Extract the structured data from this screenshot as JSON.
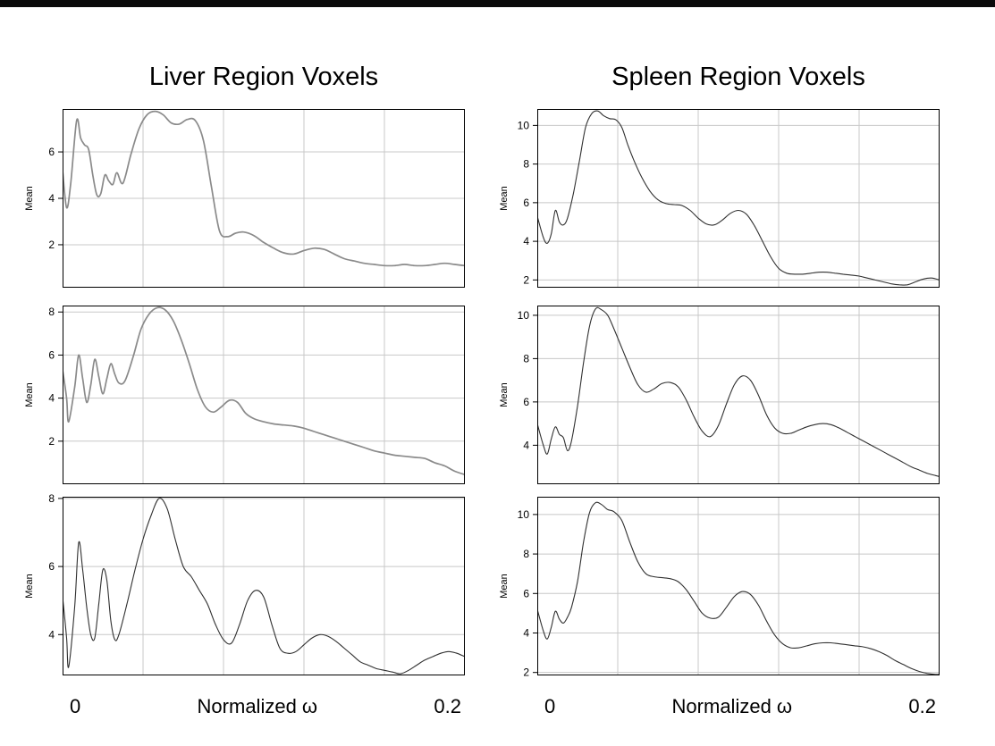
{
  "window": {
    "top_bar_color": "#0a0a0a"
  },
  "figure": {
    "background": "#ffffff",
    "grid_color": "#c8c8c8",
    "border_color": "#000000"
  },
  "chart_data": [
    {
      "type": "line",
      "title": "Liver Region Voxels",
      "region": "Liver",
      "subplot": 1,
      "ylabel": "Mean",
      "xlim": [
        0,
        0.2
      ],
      "ylim": [
        0.15,
        7.85
      ],
      "yticks": [
        2,
        4,
        6
      ],
      "grid_x": [
        0.04,
        0.08,
        0.12,
        0.16
      ],
      "line_color": "#8a8a8a",
      "line_width": 1.7,
      "x": [
        0,
        0.002,
        0.004,
        0.007,
        0.009,
        0.011,
        0.013,
        0.015,
        0.017,
        0.019,
        0.021,
        0.023,
        0.025,
        0.027,
        0.03,
        0.034,
        0.038,
        0.042,
        0.046,
        0.05,
        0.054,
        0.058,
        0.062,
        0.066,
        0.07,
        0.074,
        0.078,
        0.082,
        0.086,
        0.09,
        0.095,
        0.1,
        0.105,
        0.11,
        0.115,
        0.12,
        0.125,
        0.13,
        0.135,
        0.14,
        0.145,
        0.15,
        0.155,
        0.16,
        0.165,
        0.17,
        0.175,
        0.18,
        0.185,
        0.19,
        0.195,
        0.2
      ],
      "y": [
        5.2,
        3.6,
        4.6,
        7.35,
        6.6,
        6.3,
        6.1,
        5.0,
        4.15,
        4.2,
        5.0,
        4.75,
        4.6,
        5.1,
        4.65,
        5.9,
        7.0,
        7.6,
        7.75,
        7.6,
        7.25,
        7.2,
        7.4,
        7.35,
        6.5,
        4.5,
        2.6,
        2.35,
        2.5,
        2.55,
        2.4,
        2.1,
        1.85,
        1.65,
        1.6,
        1.75,
        1.85,
        1.8,
        1.6,
        1.4,
        1.3,
        1.2,
        1.15,
        1.1,
        1.1,
        1.15,
        1.1,
        1.1,
        1.15,
        1.2,
        1.15,
        1.1
      ]
    },
    {
      "type": "line",
      "region": "Liver",
      "subplot": 2,
      "ylabel": "Mean",
      "xlim": [
        0,
        0.2
      ],
      "ylim": [
        0,
        8.3
      ],
      "yticks": [
        2,
        4,
        6,
        8
      ],
      "grid_x": [
        0.04,
        0.08,
        0.12,
        0.16
      ],
      "line_color": "#8a8a8a",
      "line_width": 1.7,
      "x": [
        0,
        0.002,
        0.003,
        0.006,
        0.008,
        0.01,
        0.012,
        0.014,
        0.016,
        0.018,
        0.02,
        0.022,
        0.024,
        0.026,
        0.028,
        0.031,
        0.035,
        0.039,
        0.043,
        0.047,
        0.051,
        0.055,
        0.059,
        0.063,
        0.067,
        0.071,
        0.075,
        0.079,
        0.083,
        0.087,
        0.091,
        0.095,
        0.1,
        0.105,
        0.11,
        0.115,
        0.12,
        0.125,
        0.13,
        0.135,
        0.14,
        0.145,
        0.15,
        0.155,
        0.16,
        0.165,
        0.17,
        0.175,
        0.18,
        0.185,
        0.19,
        0.195,
        0.2
      ],
      "y": [
        5.3,
        4.0,
        2.9,
        4.5,
        6.0,
        4.9,
        3.8,
        4.6,
        5.8,
        5.0,
        4.2,
        4.9,
        5.6,
        5.1,
        4.7,
        4.8,
        5.9,
        7.2,
        7.9,
        8.2,
        8.1,
        7.6,
        6.7,
        5.6,
        4.4,
        3.6,
        3.35,
        3.6,
        3.9,
        3.8,
        3.3,
        3.05,
        2.9,
        2.8,
        2.75,
        2.7,
        2.6,
        2.45,
        2.3,
        2.15,
        2.0,
        1.85,
        1.7,
        1.55,
        1.45,
        1.35,
        1.3,
        1.25,
        1.2,
        1.0,
        0.85,
        0.6,
        0.45
      ]
    },
    {
      "type": "line",
      "region": "Liver",
      "subplot": 3,
      "ylabel": "Mean",
      "xlabel": "Normalized ω",
      "xtick_labels": [
        "0",
        "0.2"
      ],
      "xlim": [
        0,
        0.2
      ],
      "ylim": [
        2.8,
        8.05
      ],
      "yticks": [
        4,
        6,
        8
      ],
      "grid_x": [
        0.04,
        0.08,
        0.12,
        0.16
      ],
      "line_color": "#303030",
      "line_width": 1.1,
      "x": [
        0,
        0.002,
        0.003,
        0.006,
        0.008,
        0.01,
        0.012,
        0.014,
        0.016,
        0.018,
        0.02,
        0.022,
        0.024,
        0.026,
        0.028,
        0.032,
        0.036,
        0.04,
        0.044,
        0.048,
        0.052,
        0.056,
        0.06,
        0.064,
        0.068,
        0.072,
        0.076,
        0.08,
        0.084,
        0.088,
        0.092,
        0.096,
        0.1,
        0.104,
        0.108,
        0.112,
        0.116,
        0.12,
        0.124,
        0.128,
        0.132,
        0.136,
        0.14,
        0.144,
        0.148,
        0.152,
        0.156,
        0.16,
        0.164,
        0.168,
        0.172,
        0.176,
        0.18,
        0.184,
        0.188,
        0.192,
        0.196,
        0.2
      ],
      "y": [
        5.1,
        3.9,
        3.05,
        4.8,
        6.7,
        5.9,
        4.8,
        4.0,
        3.9,
        4.9,
        5.9,
        5.6,
        4.4,
        3.85,
        4.0,
        4.9,
        5.9,
        6.8,
        7.5,
        8.0,
        7.7,
        6.8,
        6.0,
        5.7,
        5.3,
        4.9,
        4.3,
        3.85,
        3.75,
        4.3,
        5.0,
        5.3,
        5.1,
        4.3,
        3.6,
        3.45,
        3.5,
        3.7,
        3.9,
        4.0,
        3.95,
        3.8,
        3.6,
        3.4,
        3.2,
        3.1,
        3.0,
        2.95,
        2.9,
        2.85,
        2.95,
        3.1,
        3.25,
        3.35,
        3.45,
        3.5,
        3.45,
        3.35
      ]
    },
    {
      "type": "line",
      "title": "Spleen Region Voxels",
      "region": "Spleen",
      "subplot": 1,
      "ylabel": "Mean",
      "xlim": [
        0,
        0.2
      ],
      "ylim": [
        1.6,
        10.85
      ],
      "yticks": [
        2,
        4,
        6,
        8,
        10
      ],
      "grid_x": [
        0.04,
        0.08,
        0.12,
        0.16
      ],
      "line_color": "#303030",
      "line_width": 1.1,
      "x": [
        0,
        0.003,
        0.005,
        0.007,
        0.009,
        0.011,
        0.013,
        0.015,
        0.018,
        0.021,
        0.024,
        0.027,
        0.03,
        0.033,
        0.036,
        0.039,
        0.042,
        0.045,
        0.048,
        0.052,
        0.056,
        0.06,
        0.064,
        0.068,
        0.072,
        0.076,
        0.08,
        0.084,
        0.088,
        0.092,
        0.096,
        0.1,
        0.104,
        0.108,
        0.112,
        0.116,
        0.12,
        0.124,
        0.128,
        0.132,
        0.136,
        0.14,
        0.144,
        0.148,
        0.152,
        0.156,
        0.16,
        0.164,
        0.168,
        0.172,
        0.176,
        0.18,
        0.184,
        0.188,
        0.192,
        0.196,
        0.2
      ],
      "y": [
        5.3,
        4.2,
        3.9,
        4.4,
        5.6,
        5.0,
        4.85,
        5.2,
        6.5,
        8.2,
        9.9,
        10.6,
        10.75,
        10.5,
        10.35,
        10.3,
        9.9,
        9.0,
        8.2,
        7.3,
        6.6,
        6.15,
        5.95,
        5.9,
        5.85,
        5.6,
        5.2,
        4.9,
        4.85,
        5.1,
        5.45,
        5.6,
        5.4,
        4.8,
        4.0,
        3.2,
        2.6,
        2.35,
        2.3,
        2.3,
        2.35,
        2.4,
        2.4,
        2.35,
        2.3,
        2.25,
        2.2,
        2.1,
        2.0,
        1.9,
        1.8,
        1.75,
        1.75,
        1.9,
        2.05,
        2.1,
        2.0
      ]
    },
    {
      "type": "line",
      "region": "Spleen",
      "subplot": 2,
      "ylabel": "Mean",
      "xlim": [
        0,
        0.2
      ],
      "ylim": [
        2.2,
        10.45
      ],
      "yticks": [
        4,
        6,
        8,
        10
      ],
      "grid_x": [
        0.04,
        0.08,
        0.12,
        0.16
      ],
      "line_color": "#303030",
      "line_width": 1.1,
      "x": [
        0,
        0.003,
        0.005,
        0.007,
        0.009,
        0.011,
        0.013,
        0.015,
        0.017,
        0.02,
        0.023,
        0.026,
        0.029,
        0.032,
        0.035,
        0.038,
        0.042,
        0.046,
        0.05,
        0.054,
        0.058,
        0.062,
        0.066,
        0.07,
        0.074,
        0.078,
        0.082,
        0.086,
        0.09,
        0.094,
        0.098,
        0.102,
        0.106,
        0.11,
        0.114,
        0.118,
        0.122,
        0.126,
        0.13,
        0.134,
        0.138,
        0.142,
        0.146,
        0.15,
        0.154,
        0.158,
        0.162,
        0.166,
        0.17,
        0.174,
        0.178,
        0.182,
        0.186,
        0.19,
        0.194,
        0.198,
        0.2
      ],
      "y": [
        5.0,
        4.0,
        3.6,
        4.3,
        4.85,
        4.5,
        4.35,
        3.75,
        4.2,
        5.8,
        7.8,
        9.5,
        10.3,
        10.25,
        10.0,
        9.4,
        8.5,
        7.6,
        6.8,
        6.45,
        6.6,
        6.85,
        6.9,
        6.7,
        6.1,
        5.3,
        4.65,
        4.4,
        4.9,
        5.9,
        6.8,
        7.2,
        7.0,
        6.3,
        5.4,
        4.8,
        4.55,
        4.55,
        4.7,
        4.85,
        4.95,
        5.0,
        4.95,
        4.8,
        4.6,
        4.4,
        4.2,
        4.0,
        3.8,
        3.6,
        3.4,
        3.2,
        3.0,
        2.85,
        2.7,
        2.6,
        2.55
      ]
    },
    {
      "type": "line",
      "region": "Spleen",
      "subplot": 3,
      "ylabel": "Mean",
      "xlabel": "Normalized ω",
      "xtick_labels": [
        "0",
        "0.2"
      ],
      "xlim": [
        0,
        0.2
      ],
      "ylim": [
        1.85,
        10.9
      ],
      "yticks": [
        2,
        4,
        6,
        8,
        10
      ],
      "grid_x": [
        0.04,
        0.08,
        0.12,
        0.16
      ],
      "line_color": "#303030",
      "line_width": 1.1,
      "x": [
        0,
        0.003,
        0.005,
        0.007,
        0.009,
        0.011,
        0.013,
        0.015,
        0.017,
        0.02,
        0.023,
        0.026,
        0.029,
        0.032,
        0.035,
        0.038,
        0.042,
        0.046,
        0.05,
        0.054,
        0.058,
        0.062,
        0.066,
        0.07,
        0.074,
        0.078,
        0.082,
        0.086,
        0.09,
        0.094,
        0.098,
        0.102,
        0.106,
        0.11,
        0.114,
        0.118,
        0.122,
        0.126,
        0.13,
        0.134,
        0.138,
        0.142,
        0.146,
        0.15,
        0.154,
        0.158,
        0.162,
        0.166,
        0.17,
        0.174,
        0.178,
        0.182,
        0.186,
        0.19,
        0.194,
        0.198,
        0.2
      ],
      "y": [
        5.2,
        4.1,
        3.7,
        4.3,
        5.1,
        4.7,
        4.5,
        4.8,
        5.3,
        6.6,
        8.6,
        10.1,
        10.6,
        10.5,
        10.25,
        10.15,
        9.7,
        8.6,
        7.6,
        7.0,
        6.85,
        6.8,
        6.75,
        6.6,
        6.2,
        5.6,
        5.0,
        4.75,
        4.8,
        5.3,
        5.85,
        6.1,
        5.95,
        5.4,
        4.6,
        3.9,
        3.45,
        3.25,
        3.25,
        3.35,
        3.45,
        3.5,
        3.5,
        3.45,
        3.4,
        3.35,
        3.3,
        3.2,
        3.05,
        2.85,
        2.6,
        2.4,
        2.2,
        2.05,
        1.95,
        1.9,
        1.9
      ]
    }
  ]
}
